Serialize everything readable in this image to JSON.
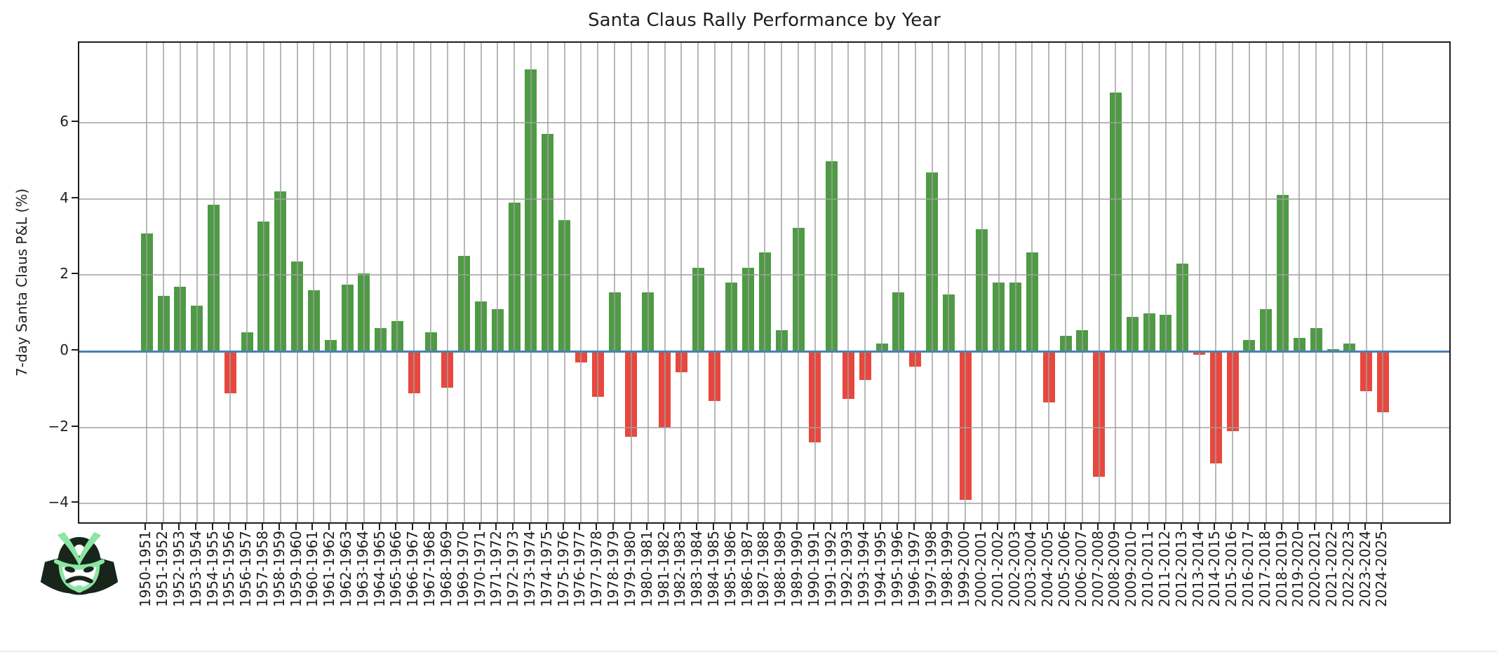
{
  "chart_data": {
    "type": "bar",
    "title": "Santa Claus Rally Performance by Year",
    "ylabel": "7-day Santa Claus P&L (%)",
    "xlabel": "",
    "categories": [
      "1950-1951",
      "1951-1952",
      "1952-1953",
      "1953-1954",
      "1954-1955",
      "1955-1956",
      "1956-1957",
      "1957-1958",
      "1958-1959",
      "1959-1960",
      "1960-1961",
      "1961-1962",
      "1962-1963",
      "1963-1964",
      "1964-1965",
      "1965-1966",
      "1966-1967",
      "1967-1968",
      "1968-1969",
      "1969-1970",
      "1970-1971",
      "1971-1972",
      "1972-1973",
      "1973-1974",
      "1974-1975",
      "1975-1976",
      "1976-1977",
      "1977-1978",
      "1978-1979",
      "1979-1980",
      "1980-1981",
      "1981-1982",
      "1982-1983",
      "1983-1984",
      "1984-1985",
      "1985-1986",
      "1986-1987",
      "1987-1988",
      "1988-1989",
      "1989-1990",
      "1990-1991",
      "1991-1992",
      "1992-1993",
      "1993-1994",
      "1994-1995",
      "1995-1996",
      "1996-1997",
      "1997-1998",
      "1998-1999",
      "1999-2000",
      "2000-2001",
      "2001-2002",
      "2002-2003",
      "2003-2004",
      "2004-2005",
      "2005-2006",
      "2006-2007",
      "2007-2008",
      "2008-2009",
      "2009-2010",
      "2010-2011",
      "2011-2012",
      "2012-2013",
      "2013-2014",
      "2014-2015",
      "2015-2016",
      "2016-2017",
      "2017-2018",
      "2018-2019",
      "2019-2020",
      "2020-2021",
      "2021-2022",
      "2022-2023",
      "2023-2024",
      "2024-2025"
    ],
    "values": [
      3.1,
      1.45,
      1.7,
      1.2,
      3.85,
      -1.1,
      0.5,
      3.4,
      4.2,
      2.35,
      1.6,
      0.3,
      1.75,
      2.05,
      0.6,
      0.8,
      -1.1,
      0.5,
      -0.95,
      2.5,
      1.3,
      1.1,
      3.9,
      7.4,
      5.7,
      3.45,
      -0.3,
      -1.2,
      1.55,
      -2.25,
      1.55,
      -2.0,
      -0.55,
      2.2,
      -1.3,
      1.8,
      2.2,
      2.6,
      0.55,
      3.25,
      -2.4,
      5.0,
      -1.25,
      -0.75,
      0.2,
      1.55,
      -0.4,
      4.7,
      1.5,
      -3.9,
      3.2,
      1.8,
      1.8,
      2.6,
      -1.35,
      0.4,
      0.55,
      -3.3,
      6.8,
      0.9,
      1.0,
      0.95,
      2.3,
      -0.1,
      -2.95,
      -2.1,
      0.3,
      1.1,
      4.1,
      0.35,
      0.6,
      0.05,
      0.2,
      -1.05,
      -1.6
    ],
    "yticks": [
      -4,
      -2,
      0,
      2,
      4,
      6
    ],
    "ytick_labels": [
      "−4",
      "−2",
      "0",
      "2",
      "4",
      "6"
    ],
    "ylim": [
      -4.57,
      8.1
    ],
    "grid": true,
    "legend": false,
    "zero_line": true,
    "colors": {
      "positive_bar": "#4f9a45",
      "negative_bar": "#e8473e",
      "zero_line": "#4a7fb5",
      "grid": "#a8a8a8",
      "frame": "#1d1d1d",
      "text": "#1f1f1f"
    }
  },
  "logo": {
    "name": "samurai-helmet-logo",
    "dark_color": "#18251a",
    "accent_color": "#8ce5a3",
    "face_color": "#ffffff"
  }
}
